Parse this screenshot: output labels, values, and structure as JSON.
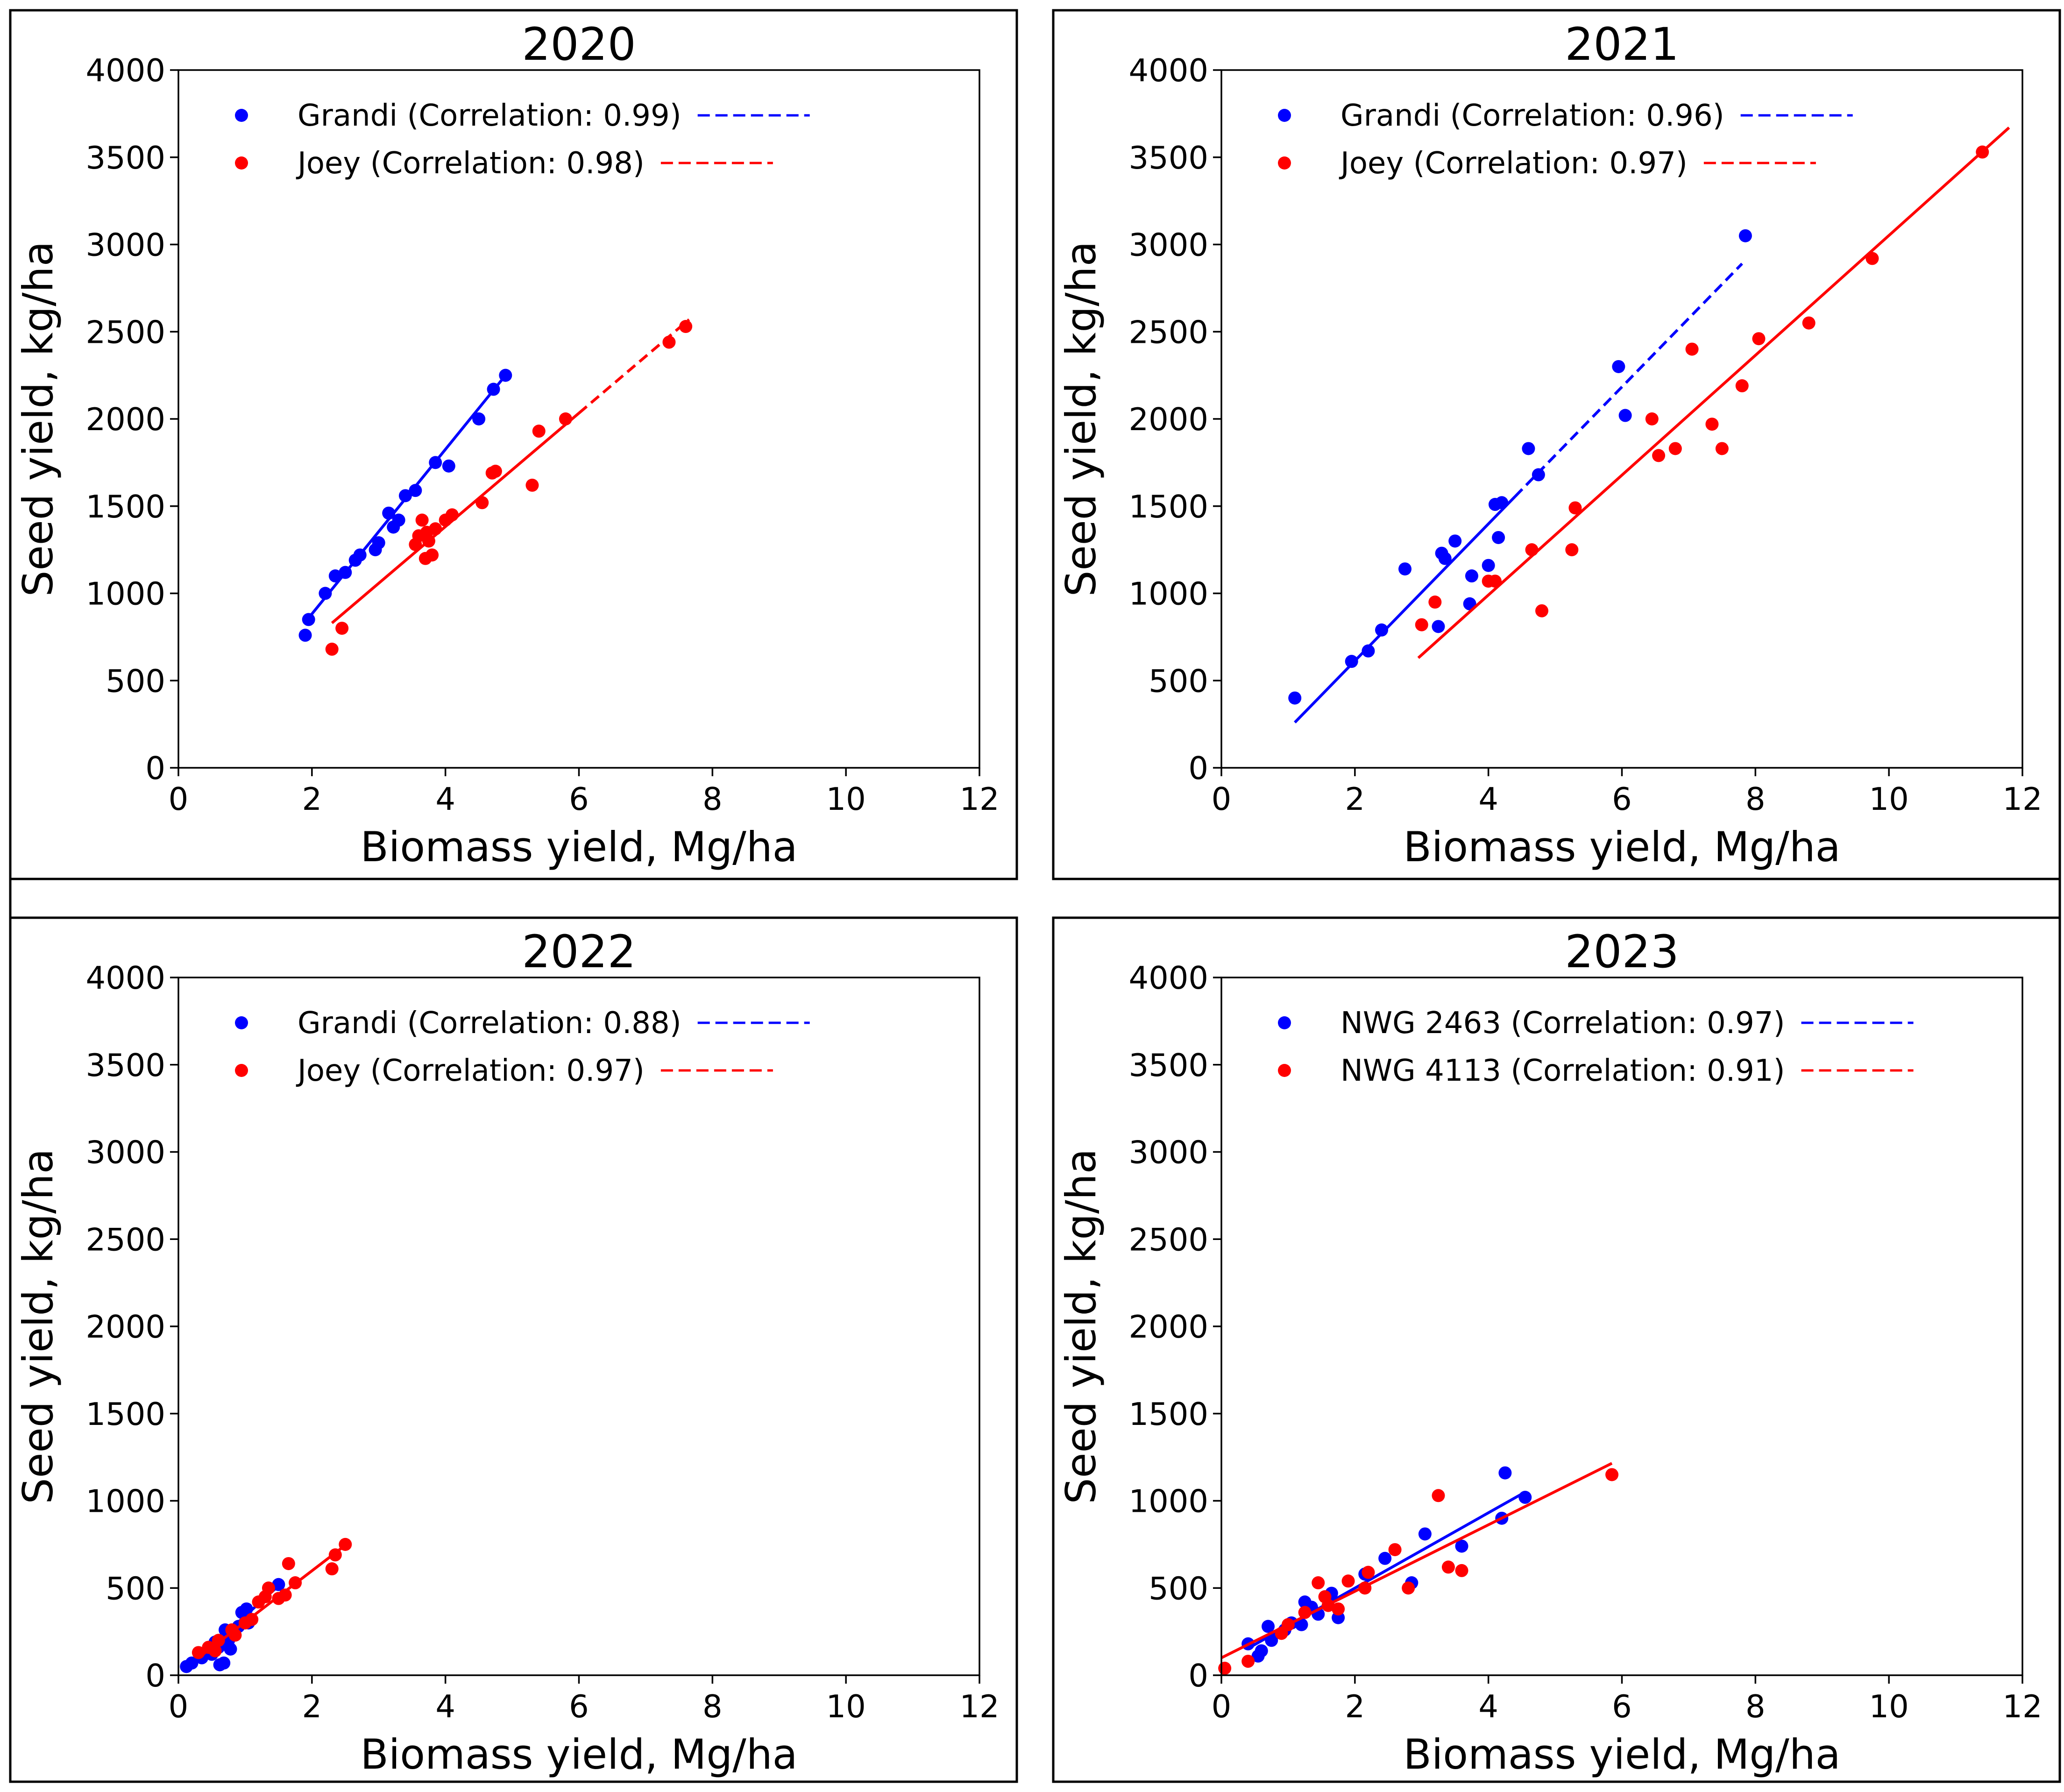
{
  "chart_data": [
    {
      "type": "scatter",
      "title": "2020",
      "xlabel": "Biomass yield, Mg/ha",
      "ylabel": "Seed yield, kg/ha",
      "xlim": [
        0,
        12
      ],
      "ylim": [
        0,
        4000
      ],
      "xticks": [
        "0",
        "2",
        "4",
        "6",
        "8",
        "10",
        "12"
      ],
      "yticks": [
        "0",
        "500",
        "1000",
        "1500",
        "2000",
        "2500",
        "3000",
        "3500",
        "4000"
      ],
      "legend_position": "top-left",
      "series": [
        {
          "name": "Grandi",
          "legend_label": "Grandi (Correlation: 0.99)",
          "correlation": 0.99,
          "color": "#0000ff",
          "points": [
            [
              1.9,
              760
            ],
            [
              1.95,
              850
            ],
            [
              2.2,
              1000
            ],
            [
              2.35,
              1100
            ],
            [
              2.5,
              1120
            ],
            [
              2.65,
              1190
            ],
            [
              2.72,
              1220
            ],
            [
              2.95,
              1250
            ],
            [
              3.0,
              1290
            ],
            [
              3.15,
              1460
            ],
            [
              3.22,
              1380
            ],
            [
              3.3,
              1420
            ],
            [
              3.4,
              1560
            ],
            [
              3.55,
              1590
            ],
            [
              3.85,
              1750
            ],
            [
              4.05,
              1730
            ],
            [
              4.5,
              2000
            ],
            [
              4.72,
              2170
            ],
            [
              4.9,
              2250
            ]
          ],
          "fit": {
            "x": [
              1.9,
              4.9
            ],
            "y": [
              835,
              2250
            ],
            "solid_x_max": 4.9
          }
        },
        {
          "name": "Joey",
          "legend_label": "Joey (Correlation: 0.98)",
          "correlation": 0.98,
          "color": "#ff0000",
          "points": [
            [
              2.3,
              680
            ],
            [
              2.45,
              800
            ],
            [
              3.55,
              1280
            ],
            [
              3.6,
              1330
            ],
            [
              3.65,
              1420
            ],
            [
              3.7,
              1200
            ],
            [
              3.72,
              1350
            ],
            [
              3.75,
              1300
            ],
            [
              3.8,
              1220
            ],
            [
              3.85,
              1370
            ],
            [
              4.0,
              1420
            ],
            [
              4.1,
              1450
            ],
            [
              4.55,
              1520
            ],
            [
              4.7,
              1690
            ],
            [
              4.75,
              1700
            ],
            [
              5.3,
              1620
            ],
            [
              5.4,
              1930
            ],
            [
              5.8,
              2000
            ],
            [
              7.35,
              2440
            ],
            [
              7.6,
              2530
            ]
          ],
          "fit": {
            "x": [
              2.3,
              7.65
            ],
            "y": [
              830,
              2570
            ],
            "solid_x_max": 6.0
          }
        }
      ]
    },
    {
      "type": "scatter",
      "title": "2021",
      "xlabel": "Biomass yield, Mg/ha",
      "ylabel": "Seed yield, kg/ha",
      "xlim": [
        0,
        12
      ],
      "ylim": [
        0,
        4000
      ],
      "xticks": [
        "0",
        "2",
        "4",
        "6",
        "8",
        "10",
        "12"
      ],
      "yticks": [
        "0",
        "500",
        "1000",
        "1500",
        "2000",
        "2500",
        "3000",
        "3500",
        "4000"
      ],
      "legend_position": "top-left",
      "series": [
        {
          "name": "Grandi",
          "legend_label": "Grandi (Correlation: 0.96)",
          "correlation": 0.96,
          "color": "#0000ff",
          "points": [
            [
              1.1,
              400
            ],
            [
              1.95,
              610
            ],
            [
              2.2,
              670
            ],
            [
              2.4,
              790
            ],
            [
              2.75,
              1140
            ],
            [
              3.25,
              810
            ],
            [
              3.3,
              1230
            ],
            [
              3.35,
              1200
            ],
            [
              3.5,
              1300
            ],
            [
              3.72,
              940
            ],
            [
              3.75,
              1100
            ],
            [
              4.0,
              1160
            ],
            [
              4.1,
              1510
            ],
            [
              4.15,
              1320
            ],
            [
              4.2,
              1520
            ],
            [
              4.6,
              1830
            ],
            [
              4.75,
              1680
            ],
            [
              5.95,
              2300
            ],
            [
              6.05,
              2020
            ],
            [
              7.85,
              3050
            ]
          ],
          "fit": {
            "x": [
              1.1,
              7.8
            ],
            "y": [
              260,
              2890
            ],
            "solid_x_max": 4.4
          }
        },
        {
          "name": "Joey",
          "legend_label": "Joey (Correlation: 0.97)",
          "correlation": 0.97,
          "color": "#ff0000",
          "points": [
            [
              3.0,
              820
            ],
            [
              3.2,
              950
            ],
            [
              4.0,
              1070
            ],
            [
              4.1,
              1070
            ],
            [
              4.65,
              1250
            ],
            [
              4.8,
              900
            ],
            [
              5.25,
              1250
            ],
            [
              5.3,
              1490
            ],
            [
              6.45,
              2000
            ],
            [
              6.55,
              1790
            ],
            [
              6.8,
              1830
            ],
            [
              7.05,
              2400
            ],
            [
              7.35,
              1970
            ],
            [
              7.5,
              1830
            ],
            [
              7.8,
              2190
            ],
            [
              8.05,
              2460
            ],
            [
              8.8,
              2550
            ],
            [
              9.75,
              2920
            ],
            [
              11.4,
              3530
            ]
          ],
          "fit": {
            "x": [
              2.95,
              11.8
            ],
            "y": [
              630,
              3670
            ],
            "solid_x_max": 11.8
          }
        }
      ]
    },
    {
      "type": "scatter",
      "title": "2022",
      "xlabel": "Biomass yield, Mg/ha",
      "ylabel": "Seed yield, kg/ha",
      "xlim": [
        0,
        12
      ],
      "ylim": [
        0,
        4000
      ],
      "xticks": [
        "0",
        "2",
        "4",
        "6",
        "8",
        "10",
        "12"
      ],
      "yticks": [
        "0",
        "500",
        "1000",
        "1500",
        "2000",
        "2500",
        "3000",
        "3500",
        "4000"
      ],
      "legend_position": "top-left",
      "series": [
        {
          "name": "Grandi",
          "legend_label": "Grandi (Correlation: 0.88)",
          "correlation": 0.88,
          "color": "#0000ff",
          "points": [
            [
              0.12,
              50
            ],
            [
              0.2,
              70
            ],
            [
              0.35,
              100
            ],
            [
              0.45,
              140
            ],
            [
              0.5,
              120
            ],
            [
              0.55,
              190
            ],
            [
              0.6,
              160
            ],
            [
              0.62,
              60
            ],
            [
              0.68,
              70
            ],
            [
              0.7,
              260
            ],
            [
              0.75,
              200
            ],
            [
              0.78,
              150
            ],
            [
              0.82,
              230
            ],
            [
              0.9,
              280
            ],
            [
              0.95,
              360
            ],
            [
              1.02,
              380
            ],
            [
              1.05,
              300
            ],
            [
              1.5,
              520
            ]
          ],
          "fit": {
            "x": [
              0.1,
              1.55
            ],
            "y": [
              30,
              530
            ],
            "solid_x_max": 1.55
          }
        },
        {
          "name": "Joey",
          "legend_label": "Joey (Correlation: 0.97)",
          "correlation": 0.97,
          "color": "#ff0000",
          "points": [
            [
              0.3,
              130
            ],
            [
              0.45,
              160
            ],
            [
              0.55,
              140
            ],
            [
              0.6,
              200
            ],
            [
              0.8,
              260
            ],
            [
              0.85,
              230
            ],
            [
              1.0,
              300
            ],
            [
              1.1,
              320
            ],
            [
              1.2,
              420
            ],
            [
              1.3,
              450
            ],
            [
              1.35,
              500
            ],
            [
              1.5,
              440
            ],
            [
              1.6,
              460
            ],
            [
              1.65,
              640
            ],
            [
              1.75,
              530
            ],
            [
              2.3,
              610
            ],
            [
              2.35,
              690
            ],
            [
              2.5,
              750
            ]
          ],
          "fit": {
            "x": [
              0.3,
              2.55
            ],
            "y": [
              100,
              760
            ],
            "solid_x_max": 2.55
          }
        }
      ]
    },
    {
      "type": "scatter",
      "title": "2023",
      "xlabel": "Biomass yield, Mg/ha",
      "ylabel": "Seed yield, kg/ha",
      "xlim": [
        0,
        12
      ],
      "ylim": [
        0,
        4000
      ],
      "xticks": [
        "0",
        "2",
        "4",
        "6",
        "8",
        "10",
        "12"
      ],
      "yticks": [
        "0",
        "500",
        "1000",
        "1500",
        "2000",
        "2500",
        "3000",
        "3500",
        "4000"
      ],
      "legend_position": "top-left",
      "series": [
        {
          "name": "NWG 2463",
          "legend_label": "NWG 2463 (Correlation: 0.97)",
          "correlation": 0.97,
          "color": "#0000ff",
          "points": [
            [
              0.4,
              180
            ],
            [
              0.55,
              110
            ],
            [
              0.6,
              140
            ],
            [
              0.7,
              280
            ],
            [
              0.75,
              200
            ],
            [
              0.95,
              260
            ],
            [
              1.05,
              300
            ],
            [
              1.2,
              290
            ],
            [
              1.25,
              420
            ],
            [
              1.35,
              390
            ],
            [
              1.45,
              350
            ],
            [
              1.65,
              470
            ],
            [
              1.75,
              330
            ],
            [
              2.15,
              580
            ],
            [
              2.45,
              670
            ],
            [
              2.85,
              530
            ],
            [
              3.05,
              810
            ],
            [
              3.6,
              740
            ],
            [
              4.2,
              900
            ],
            [
              4.25,
              1160
            ],
            [
              4.55,
              1020
            ]
          ],
          "fit": {
            "x": [
              0.38,
              4.55
            ],
            "y": [
              150,
              1050
            ],
            "solid_x_max": 4.55
          }
        },
        {
          "name": "NWG 4113",
          "legend_label": "NWG 4113 (Correlation: 0.91)",
          "correlation": 0.91,
          "color": "#ff0000",
          "points": [
            [
              0.05,
              40
            ],
            [
              0.4,
              80
            ],
            [
              0.9,
              240
            ],
            [
              1.0,
              290
            ],
            [
              1.25,
              360
            ],
            [
              1.45,
              530
            ],
            [
              1.55,
              450
            ],
            [
              1.6,
              400
            ],
            [
              1.75,
              380
            ],
            [
              1.9,
              540
            ],
            [
              2.15,
              500
            ],
            [
              2.2,
              590
            ],
            [
              2.6,
              720
            ],
            [
              2.8,
              500
            ],
            [
              3.25,
              1030
            ],
            [
              3.4,
              620
            ],
            [
              3.6,
              600
            ],
            [
              5.85,
              1150
            ]
          ],
          "fit": {
            "x": [
              0.0,
              5.85
            ],
            "y": [
              100,
              1215
            ],
            "solid_x_max": 5.85
          }
        }
      ]
    }
  ]
}
